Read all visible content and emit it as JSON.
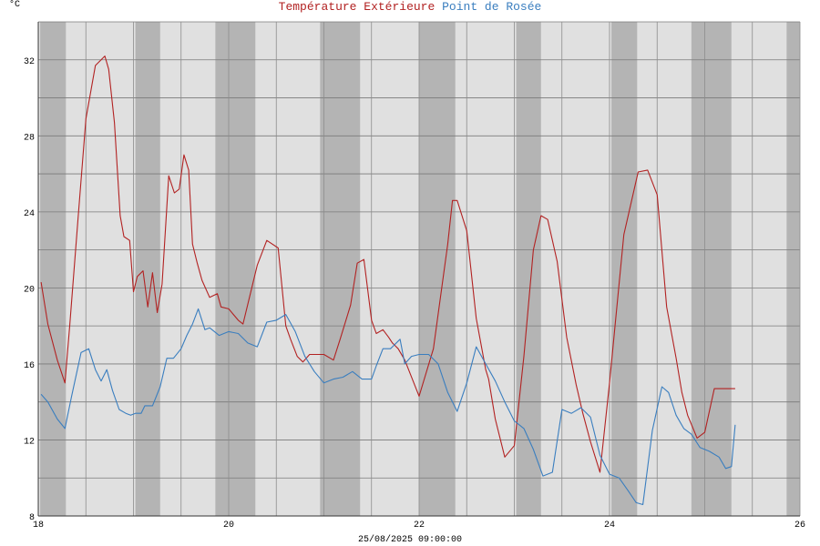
{
  "chart_data": {
    "type": "line",
    "title_parts": [
      {
        "text": "Température Extérieure",
        "color": "#b22222"
      },
      {
        "text": "Point de Rosée",
        "color": "#3a7ebf"
      }
    ],
    "ylabel": "°C",
    "xlabel": "25/08/2025 09:00:00",
    "xlim": [
      18,
      26
    ],
    "ylim": [
      8,
      34
    ],
    "yticks": [
      8,
      12,
      16,
      20,
      24,
      28,
      32
    ],
    "xticks": [
      18,
      20,
      22,
      24,
      26
    ],
    "grid": true,
    "night_bands": [
      [
        18.02,
        18.29
      ],
      [
        19.02,
        19.28
      ],
      [
        19.86,
        20.28
      ],
      [
        20.96,
        21.38
      ],
      [
        22.0,
        22.38
      ],
      [
        23.02,
        23.28
      ],
      [
        24.02,
        24.29
      ],
      [
        24.86,
        25.28
      ],
      [
        25.86,
        26.0
      ]
    ],
    "series": [
      {
        "name": "Température Extérieure",
        "color": "#b22222",
        "x": [
          18.03,
          18.1,
          18.2,
          18.28,
          18.33,
          18.42,
          18.5,
          18.6,
          18.7,
          18.74,
          18.8,
          18.86,
          18.9,
          18.96,
          19.0,
          19.04,
          19.1,
          19.15,
          19.2,
          19.25,
          19.3,
          19.37,
          19.43,
          19.48,
          19.53,
          19.58,
          19.62,
          19.67,
          19.72,
          19.8,
          19.88,
          19.92,
          20.0,
          20.05,
          20.1,
          20.15,
          20.3,
          20.4,
          20.52,
          20.6,
          20.65,
          20.72,
          20.78,
          20.85,
          21.0,
          21.1,
          21.17,
          21.28,
          21.35,
          21.42,
          21.5,
          21.55,
          21.62,
          21.68,
          21.72,
          21.78,
          21.85,
          22.0,
          22.15,
          22.3,
          22.35,
          22.4,
          22.5,
          22.6,
          22.7,
          22.73,
          22.8,
          22.9,
          23.0,
          23.1,
          23.2,
          23.28,
          23.35,
          23.45,
          23.55,
          23.65,
          23.72,
          23.8,
          23.9,
          24.0,
          24.15,
          24.3,
          24.4,
          24.5,
          24.6,
          24.7,
          24.76,
          24.82,
          24.92,
          25.0,
          25.1,
          25.2,
          25.28,
          25.32
        ],
        "values": [
          20.3,
          18.1,
          16.2,
          15.0,
          18.0,
          23.8,
          28.9,
          31.7,
          32.2,
          31.5,
          28.7,
          23.8,
          22.7,
          22.5,
          19.8,
          20.6,
          20.9,
          19.0,
          20.8,
          18.7,
          20.2,
          25.9,
          25.0,
          25.2,
          27.0,
          26.2,
          22.3,
          21.3,
          20.4,
          19.5,
          19.7,
          19.0,
          18.9,
          18.6,
          18.3,
          18.1,
          21.2,
          22.5,
          22.1,
          18.0,
          17.3,
          16.4,
          16.1,
          16.5,
          16.5,
          16.2,
          17.3,
          19.1,
          21.3,
          21.5,
          18.3,
          17.6,
          17.8,
          17.4,
          17.1,
          16.8,
          16.2,
          14.3,
          16.8,
          22.3,
          24.6,
          24.6,
          23.0,
          18.4,
          15.7,
          15.2,
          13.1,
          11.1,
          11.7,
          16.4,
          22.0,
          23.8,
          23.6,
          21.4,
          17.4,
          14.9,
          13.4,
          11.9,
          10.3,
          15.0,
          22.8,
          26.1,
          26.2,
          24.9,
          19.0,
          16.3,
          14.5,
          13.3,
          12.1,
          12.4,
          14.7,
          14.7,
          14.7,
          14.7
        ],
        "x_note": ""
      },
      {
        "name": "Point de Rosée",
        "color": "#3a7ebf",
        "x": [
          18.03,
          18.1,
          18.2,
          18.28,
          18.35,
          18.45,
          18.53,
          18.6,
          18.66,
          18.72,
          18.78,
          18.85,
          18.92,
          18.97,
          19.02,
          19.08,
          19.12,
          19.2,
          19.28,
          19.35,
          19.42,
          19.5,
          19.56,
          19.62,
          19.68,
          19.75,
          19.8,
          19.9,
          20.0,
          20.1,
          20.2,
          20.3,
          20.4,
          20.5,
          20.6,
          20.7,
          20.8,
          20.9,
          21.0,
          21.1,
          21.2,
          21.3,
          21.4,
          21.5,
          21.55,
          21.62,
          21.7,
          21.8,
          21.85,
          21.92,
          22.0,
          22.1,
          22.2,
          22.3,
          22.4,
          22.5,
          22.6,
          22.7,
          22.8,
          22.9,
          23.0,
          23.1,
          23.2,
          23.3,
          23.4,
          23.5,
          23.6,
          23.7,
          23.8,
          23.9,
          24.0,
          24.1,
          24.2,
          24.28,
          24.35,
          24.45,
          24.55,
          24.62,
          24.7,
          24.78,
          24.86,
          24.95,
          25.05,
          25.15,
          25.22,
          25.28,
          25.32
        ],
        "values": [
          14.4,
          14.0,
          13.1,
          12.6,
          14.3,
          16.6,
          16.8,
          15.7,
          15.1,
          15.7,
          14.6,
          13.6,
          13.4,
          13.3,
          13.4,
          13.4,
          13.8,
          13.8,
          14.8,
          16.3,
          16.3,
          16.8,
          17.5,
          18.1,
          18.9,
          17.8,
          17.9,
          17.5,
          17.7,
          17.6,
          17.1,
          16.9,
          18.2,
          18.3,
          18.6,
          17.7,
          16.4,
          15.6,
          15.0,
          15.2,
          15.3,
          15.6,
          15.2,
          15.2,
          15.9,
          16.8,
          16.8,
          17.3,
          16.0,
          16.4,
          16.5,
          16.5,
          16.0,
          14.5,
          13.5,
          15.0,
          16.9,
          16.0,
          15.1,
          14.0,
          13.0,
          12.6,
          11.5,
          10.1,
          10.3,
          13.6,
          13.4,
          13.7,
          13.2,
          11.2,
          10.2,
          10.0,
          9.3,
          8.7,
          8.6,
          12.5,
          14.8,
          14.5,
          13.3,
          12.6,
          12.3,
          11.6,
          11.4,
          11.1,
          10.5,
          10.6,
          12.8
        ],
        "x_note": ""
      }
    ]
  }
}
